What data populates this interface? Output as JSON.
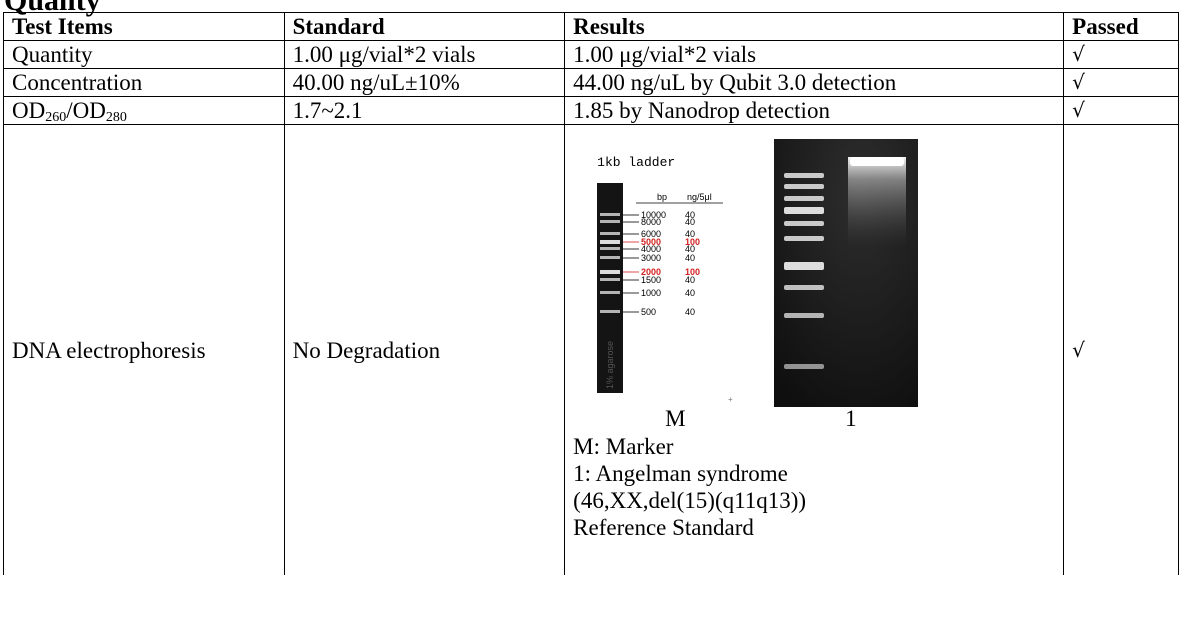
{
  "heading": "Quality",
  "table": {
    "headers": {
      "test_items": "Test Items",
      "standard": "Standard",
      "results": "Results",
      "passed": "Passed"
    },
    "rows": [
      {
        "test_item": "Quantity",
        "standard": "1.00 μg/vial*2 vials",
        "result": "1.00 μg/vial*2 vials",
        "passed": "√"
      },
      {
        "test_item": "Concentration",
        "standard": "40.00 ng/uL±10%",
        "result": "44.00 ng/uL by Qubit 3.0 detection",
        "passed": "√"
      },
      {
        "test_item_main_1": "OD",
        "test_item_sub_1": "260",
        "test_item_sep": "/",
        "test_item_main_2": "OD",
        "test_item_sub_2": "280",
        "standard": "1.7~2.1",
        "result": "1.85 by Nanodrop detection",
        "passed": "√"
      },
      {
        "test_item": "DNA electrophoresis",
        "standard": "No Degradation",
        "passed": "√"
      }
    ]
  },
  "gel": {
    "ladder_title": "1kb ladder",
    "col_bp": "bp",
    "col_ng": "ng/5μl",
    "agarose_label": "1% agarose",
    "ladder_bands": [
      {
        "bp": "10000",
        "ng": "40",
        "highlight": false
      },
      {
        "bp": "8000",
        "ng": "40",
        "highlight": false
      },
      {
        "bp": "6000",
        "ng": "40",
        "highlight": false
      },
      {
        "bp": "5000",
        "ng": "100",
        "highlight": true
      },
      {
        "bp": "4000",
        "ng": "40",
        "highlight": false
      },
      {
        "bp": "3000",
        "ng": "40",
        "highlight": false
      },
      {
        "bp": "2000",
        "ng": "100",
        "highlight": true
      },
      {
        "bp": "1500",
        "ng": "40",
        "highlight": false
      },
      {
        "bp": "1000",
        "ng": "40",
        "highlight": false
      },
      {
        "bp": "500",
        "ng": "40",
        "highlight": false
      }
    ],
    "lane_m": "M",
    "lane_1": "1",
    "highlight_color": "#d42020",
    "gel_background": "#1a1a1a"
  },
  "legend": {
    "line_1": "M: Marker",
    "line_2": "1: Angelman syndrome (46,XX,del(15)(q11q13)) Reference Standard"
  }
}
